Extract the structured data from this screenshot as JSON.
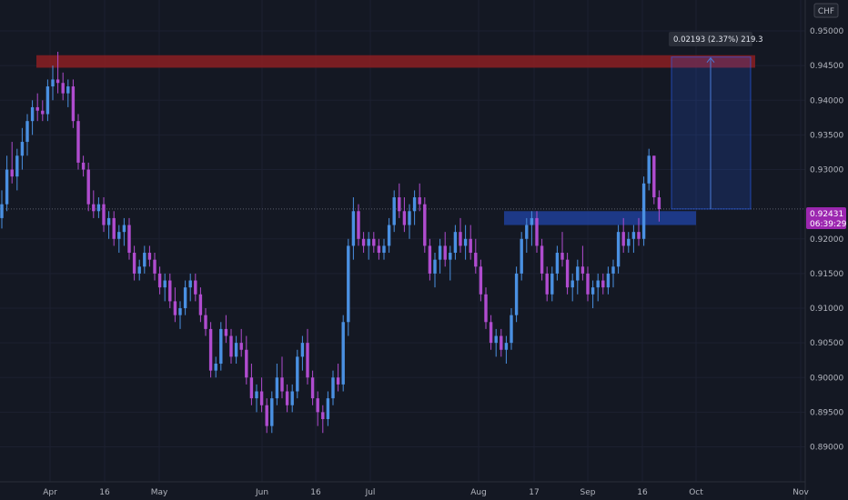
{
  "chart_data": {
    "type": "candlestick",
    "currency_label": "CHF",
    "y_axis": {
      "ylim": [
        0.886,
        0.9525
      ],
      "ticks": [
        "0.95000",
        "0.94500",
        "0.94000",
        "0.93500",
        "0.93000",
        "0.92000",
        "0.91500",
        "0.91000",
        "0.90500",
        "0.90000",
        "0.89500",
        "0.89000"
      ]
    },
    "x_axis": {
      "ticks": [
        "Apr",
        "16",
        "May",
        "Jun",
        "16",
        "Jul",
        "Aug",
        "17",
        "Sep",
        "16",
        "Oct",
        "Nov"
      ]
    },
    "last_price": "0.92431",
    "countdown": "06:39:29",
    "measure_label": "0.02193 (2.37%) 219.3",
    "zones": [
      {
        "name": "resistance",
        "top": 0.9465,
        "bottom": 0.9447,
        "color": "#8b1e22"
      },
      {
        "name": "support",
        "top": 0.924,
        "bottom": 0.922,
        "color": "#1f3f99"
      }
    ],
    "measure": {
      "from": 0.92431,
      "to": 0.94624,
      "color": "#2962ff"
    },
    "colors": {
      "up": "#4a90e2",
      "down": "#b04ccf"
    },
    "candles": [
      [
        0.923,
        0.927,
        0.9215,
        0.925
      ],
      [
        0.925,
        0.932,
        0.924,
        0.93
      ],
      [
        0.93,
        0.934,
        0.928,
        0.929
      ],
      [
        0.929,
        0.933,
        0.927,
        0.932
      ],
      [
        0.932,
        0.936,
        0.93,
        0.934
      ],
      [
        0.934,
        0.938,
        0.932,
        0.937
      ],
      [
        0.937,
        0.94,
        0.935,
        0.939
      ],
      [
        0.939,
        0.941,
        0.937,
        0.9385
      ],
      [
        0.9385,
        0.94,
        0.937,
        0.938
      ],
      [
        0.938,
        0.943,
        0.937,
        0.942
      ],
      [
        0.942,
        0.945,
        0.94,
        0.943
      ],
      [
        0.943,
        0.947,
        0.941,
        0.9425
      ],
      [
        0.9425,
        0.944,
        0.94,
        0.941
      ],
      [
        0.941,
        0.943,
        0.939,
        0.942
      ],
      [
        0.942,
        0.943,
        0.936,
        0.937
      ],
      [
        0.937,
        0.938,
        0.93,
        0.931
      ],
      [
        0.931,
        0.932,
        0.929,
        0.93
      ],
      [
        0.93,
        0.931,
        0.924,
        0.925
      ],
      [
        0.925,
        0.927,
        0.923,
        0.924
      ],
      [
        0.924,
        0.926,
        0.923,
        0.925
      ],
      [
        0.925,
        0.926,
        0.921,
        0.922
      ],
      [
        0.922,
        0.924,
        0.92,
        0.923
      ],
      [
        0.923,
        0.924,
        0.919,
        0.92
      ],
      [
        0.92,
        0.922,
        0.918,
        0.921
      ],
      [
        0.921,
        0.923,
        0.919,
        0.922
      ],
      [
        0.922,
        0.923,
        0.917,
        0.918
      ],
      [
        0.918,
        0.919,
        0.914,
        0.915
      ],
      [
        0.915,
        0.917,
        0.914,
        0.916
      ],
      [
        0.916,
        0.919,
        0.915,
        0.918
      ],
      [
        0.918,
        0.919,
        0.916,
        0.917
      ],
      [
        0.917,
        0.918,
        0.914,
        0.915
      ],
      [
        0.915,
        0.916,
        0.912,
        0.913
      ],
      [
        0.913,
        0.915,
        0.911,
        0.914
      ],
      [
        0.914,
        0.915,
        0.91,
        0.911
      ],
      [
        0.911,
        0.913,
        0.908,
        0.909
      ],
      [
        0.909,
        0.911,
        0.907,
        0.91
      ],
      [
        0.91,
        0.914,
        0.909,
        0.913
      ],
      [
        0.913,
        0.915,
        0.911,
        0.914
      ],
      [
        0.914,
        0.915,
        0.911,
        0.912
      ],
      [
        0.912,
        0.913,
        0.908,
        0.909
      ],
      [
        0.909,
        0.91,
        0.906,
        0.907
      ],
      [
        0.907,
        0.908,
        0.9,
        0.901
      ],
      [
        0.901,
        0.903,
        0.9,
        0.902
      ],
      [
        0.902,
        0.908,
        0.901,
        0.907
      ],
      [
        0.907,
        0.909,
        0.905,
        0.906
      ],
      [
        0.906,
        0.907,
        0.902,
        0.903
      ],
      [
        0.903,
        0.906,
        0.902,
        0.905
      ],
      [
        0.905,
        0.907,
        0.903,
        0.904
      ],
      [
        0.904,
        0.906,
        0.899,
        0.9
      ],
      [
        0.9,
        0.902,
        0.896,
        0.897
      ],
      [
        0.897,
        0.899,
        0.895,
        0.898
      ],
      [
        0.898,
        0.9,
        0.895,
        0.896
      ],
      [
        0.896,
        0.897,
        0.892,
        0.893
      ],
      [
        0.893,
        0.898,
        0.892,
        0.897
      ],
      [
        0.897,
        0.902,
        0.896,
        0.9
      ],
      [
        0.9,
        0.903,
        0.897,
        0.898
      ],
      [
        0.898,
        0.899,
        0.895,
        0.896
      ],
      [
        0.896,
        0.899,
        0.895,
        0.898
      ],
      [
        0.898,
        0.904,
        0.897,
        0.903
      ],
      [
        0.903,
        0.906,
        0.901,
        0.905
      ],
      [
        0.905,
        0.907,
        0.899,
        0.9
      ],
      [
        0.9,
        0.901,
        0.896,
        0.897
      ],
      [
        0.897,
        0.898,
        0.893,
        0.895
      ],
      [
        0.895,
        0.896,
        0.892,
        0.894
      ],
      [
        0.894,
        0.898,
        0.893,
        0.897
      ],
      [
        0.897,
        0.901,
        0.896,
        0.9
      ],
      [
        0.9,
        0.902,
        0.898,
        0.899
      ],
      [
        0.899,
        0.909,
        0.898,
        0.908
      ],
      [
        0.908,
        0.92,
        0.906,
        0.919
      ],
      [
        0.919,
        0.926,
        0.917,
        0.924
      ],
      [
        0.924,
        0.925,
        0.919,
        0.92
      ],
      [
        0.92,
        0.921,
        0.918,
        0.919
      ],
      [
        0.919,
        0.921,
        0.917,
        0.92
      ],
      [
        0.92,
        0.921,
        0.918,
        0.919
      ],
      [
        0.919,
        0.92,
        0.917,
        0.918
      ],
      [
        0.918,
        0.92,
        0.917,
        0.919
      ],
      [
        0.919,
        0.923,
        0.918,
        0.922
      ],
      [
        0.922,
        0.927,
        0.921,
        0.926
      ],
      [
        0.926,
        0.928,
        0.923,
        0.924
      ],
      [
        0.924,
        0.926,
        0.921,
        0.922
      ],
      [
        0.922,
        0.925,
        0.92,
        0.924
      ],
      [
        0.924,
        0.927,
        0.922,
        0.926
      ],
      [
        0.926,
        0.928,
        0.924,
        0.925
      ],
      [
        0.925,
        0.926,
        0.918,
        0.919
      ],
      [
        0.919,
        0.92,
        0.914,
        0.915
      ],
      [
        0.915,
        0.918,
        0.913,
        0.917
      ],
      [
        0.917,
        0.92,
        0.915,
        0.919
      ],
      [
        0.919,
        0.921,
        0.916,
        0.917
      ],
      [
        0.917,
        0.919,
        0.914,
        0.918
      ],
      [
        0.918,
        0.922,
        0.917,
        0.921
      ],
      [
        0.921,
        0.923,
        0.918,
        0.919
      ],
      [
        0.919,
        0.922,
        0.917,
        0.92
      ],
      [
        0.92,
        0.922,
        0.917,
        0.918
      ],
      [
        0.918,
        0.92,
        0.915,
        0.916
      ],
      [
        0.916,
        0.917,
        0.911,
        0.912
      ],
      [
        0.912,
        0.913,
        0.907,
        0.908
      ],
      [
        0.908,
        0.909,
        0.904,
        0.905
      ],
      [
        0.905,
        0.907,
        0.903,
        0.906
      ],
      [
        0.906,
        0.907,
        0.903,
        0.904
      ],
      [
        0.904,
        0.906,
        0.902,
        0.905
      ],
      [
        0.905,
        0.91,
        0.904,
        0.909
      ],
      [
        0.909,
        0.916,
        0.908,
        0.915
      ],
      [
        0.915,
        0.921,
        0.914,
        0.92
      ],
      [
        0.92,
        0.923,
        0.918,
        0.922
      ],
      [
        0.922,
        0.924,
        0.919,
        0.923
      ],
      [
        0.923,
        0.924,
        0.918,
        0.919
      ],
      [
        0.919,
        0.92,
        0.914,
        0.915
      ],
      [
        0.915,
        0.916,
        0.911,
        0.912
      ],
      [
        0.912,
        0.916,
        0.911,
        0.915
      ],
      [
        0.915,
        0.919,
        0.914,
        0.918
      ],
      [
        0.918,
        0.921,
        0.916,
        0.917
      ],
      [
        0.917,
        0.918,
        0.912,
        0.913
      ],
      [
        0.913,
        0.915,
        0.911,
        0.914
      ],
      [
        0.914,
        0.917,
        0.912,
        0.916
      ],
      [
        0.916,
        0.919,
        0.914,
        0.915
      ],
      [
        0.915,
        0.916,
        0.911,
        0.912
      ],
      [
        0.912,
        0.914,
        0.91,
        0.913
      ],
      [
        0.913,
        0.915,
        0.911,
        0.914
      ],
      [
        0.914,
        0.915,
        0.912,
        0.913
      ],
      [
        0.913,
        0.916,
        0.912,
        0.915
      ],
      [
        0.915,
        0.917,
        0.913,
        0.916
      ],
      [
        0.916,
        0.922,
        0.915,
        0.921
      ],
      [
        0.921,
        0.923,
        0.918,
        0.919
      ],
      [
        0.919,
        0.921,
        0.918,
        0.92
      ],
      [
        0.92,
        0.922,
        0.918,
        0.921
      ],
      [
        0.921,
        0.923,
        0.919,
        0.92
      ],
      [
        0.92,
        0.929,
        0.919,
        0.928
      ],
      [
        0.928,
        0.933,
        0.927,
        0.932
      ],
      [
        0.932,
        0.932,
        0.925,
        0.926
      ],
      [
        0.926,
        0.927,
        0.9225,
        0.9243
      ]
    ]
  }
}
